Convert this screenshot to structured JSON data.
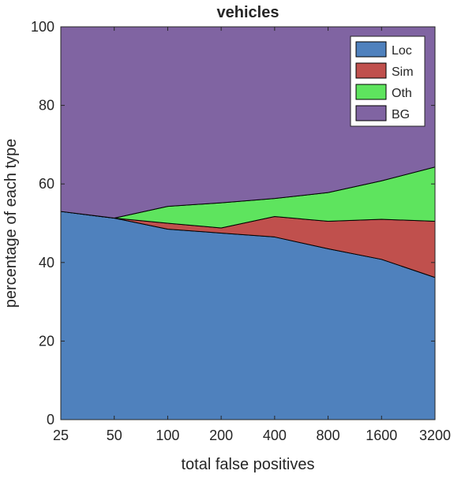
{
  "chart_data": {
    "type": "area",
    "stacked": true,
    "title": "vehicles",
    "xlabel": "total false positives",
    "ylabel": "percentage of each type",
    "x": [
      "25",
      "50",
      "100",
      "200",
      "400",
      "800",
      "1600",
      "3200"
    ],
    "ylim": [
      0,
      100
    ],
    "yticks": [
      0,
      20,
      40,
      60,
      80,
      100
    ],
    "grid": false,
    "legend_position": "top-right",
    "series": [
      {
        "name": "Loc",
        "color": "#4f81bd",
        "values": [
          53.0,
          51.3,
          48.5,
          47.5,
          46.5,
          43.5,
          40.8,
          36.2
        ]
      },
      {
        "name": "Sim",
        "color": "#c0504d",
        "values": [
          0.0,
          0.0,
          1.5,
          1.3,
          5.2,
          7.0,
          10.2,
          14.3
        ]
      },
      {
        "name": "Oth",
        "color": "#5ee45e",
        "values": [
          0.0,
          0.0,
          4.3,
          6.4,
          4.6,
          7.3,
          9.8,
          13.8
        ]
      },
      {
        "name": "BG",
        "color": "#8064a2",
        "values": [
          47.0,
          48.7,
          45.7,
          44.8,
          43.7,
          42.2,
          39.2,
          35.7
        ]
      }
    ]
  }
}
